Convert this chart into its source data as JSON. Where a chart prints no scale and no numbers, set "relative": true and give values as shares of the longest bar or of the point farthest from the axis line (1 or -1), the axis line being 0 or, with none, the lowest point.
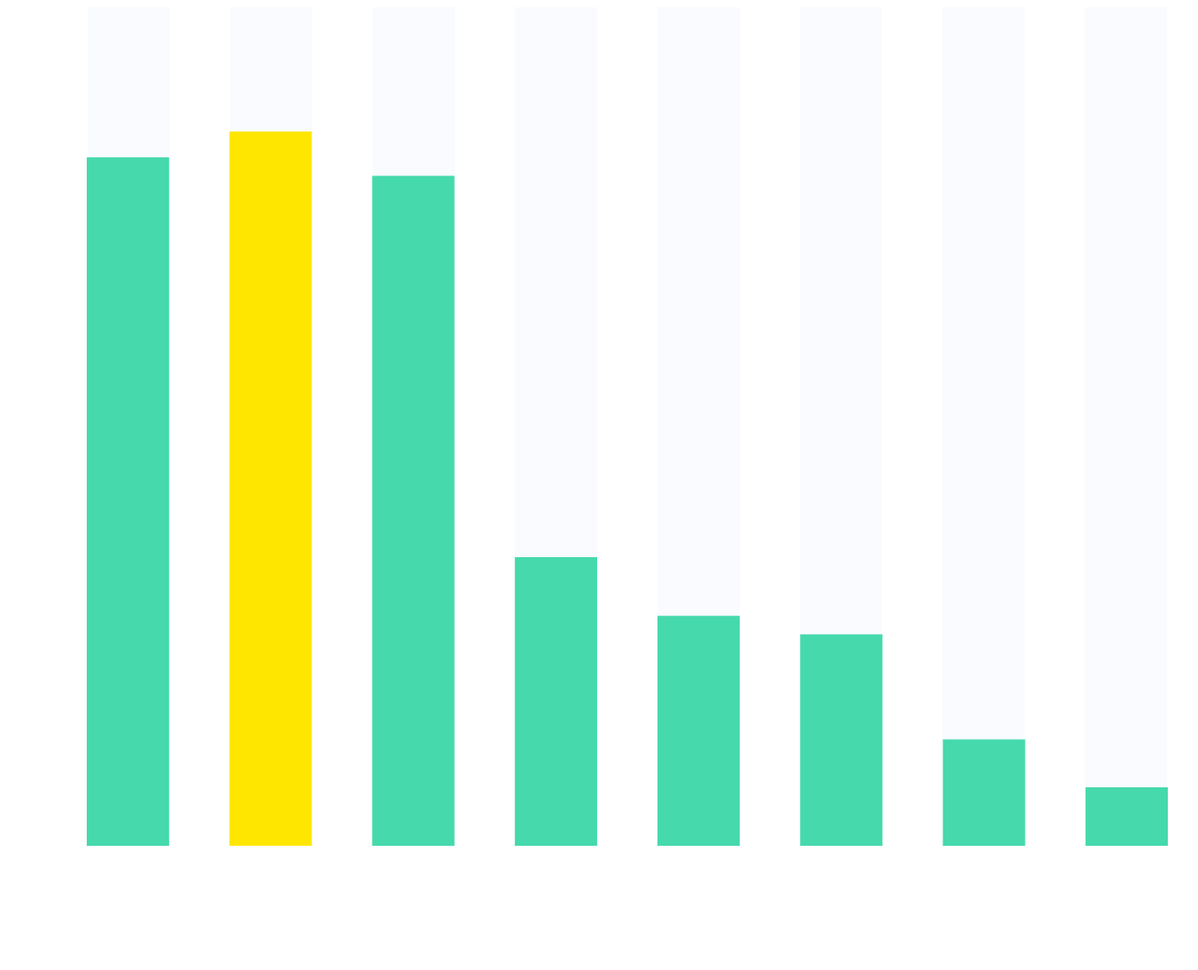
{
  "chart_data": {
    "type": "bar",
    "relative": true,
    "categories": [
      null,
      null,
      null,
      null,
      null,
      null,
      null,
      null
    ],
    "colors": [
      "#45d9ac",
      "#ffe600",
      "#45d9ac",
      "#45d9ac",
      "#45d9ac",
      "#45d9ac",
      "#45d9ac",
      "#45d9ac"
    ],
    "values": [
      0.964,
      1,
      0.938,
      0.404,
      0.322,
      0.296,
      0.149,
      0.082
    ]
  }
}
